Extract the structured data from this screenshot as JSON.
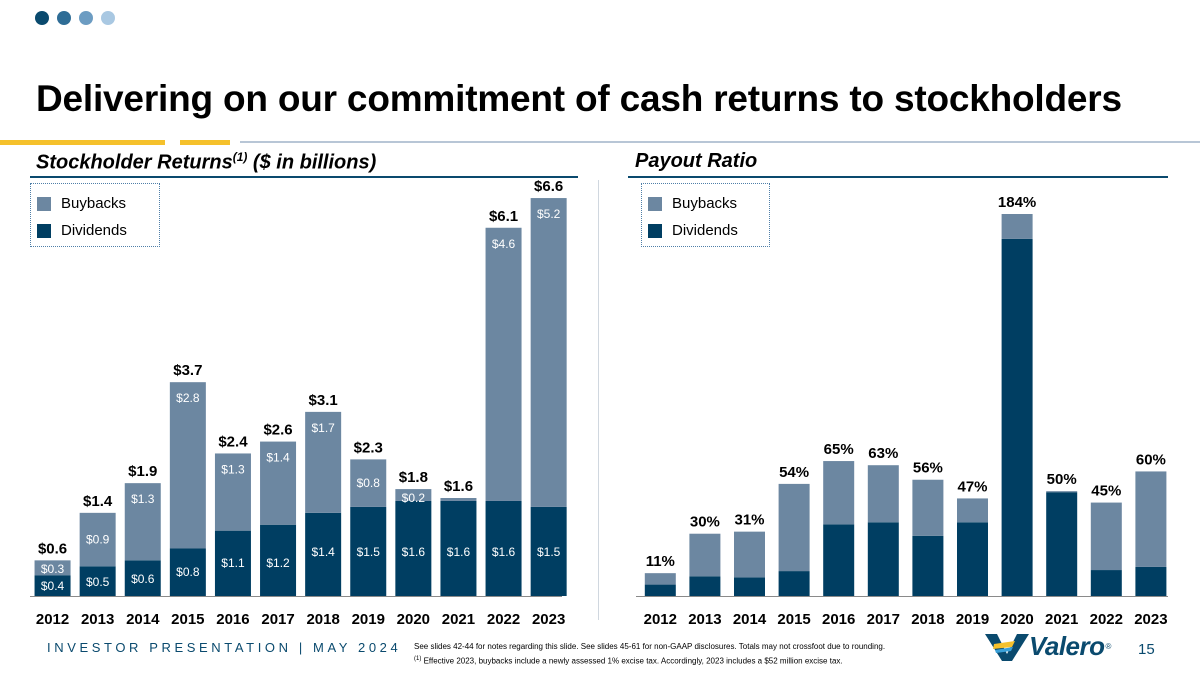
{
  "slide": {
    "title": "Delivering on our commitment of cash returns to stockholders",
    "footer_left": "INVESTOR PRESENTATION | MAY 2024",
    "footnote_1": "See slides 42-44 for notes regarding this slide. See slides 45-61 for non-GAAP disclosures. Totals may not crossfoot due to rounding.",
    "footnote_2_marker": "(1)",
    "footnote_2": " Effective 2023, buybacks include a newly assessed 1% excise tax. Accordingly, 2023 includes a $52 million excise tax.",
    "logo_text": "Valero",
    "logo_reg": "®",
    "page_number": "15"
  },
  "colors": {
    "buybacks": "#6c87a1",
    "dividends": "#003e62",
    "dots": [
      "#0a4a6e",
      "#2f6d96",
      "#6c9cc2",
      "#a9c8e2"
    ]
  },
  "left_section": {
    "heading": "Stockholder Returns",
    "heading_sup": "(1)",
    "heading_suffix": " ($ in billions)",
    "legend": {
      "buybacks": "Buybacks",
      "dividends": "Dividends"
    }
  },
  "right_section": {
    "heading": "Payout Ratio",
    "legend": {
      "buybacks": "Buybacks",
      "dividends": "Dividends"
    }
  },
  "chart_data": [
    {
      "type": "bar",
      "stacked": true,
      "title": "Stockholder Returns ($ in billions)",
      "categories": [
        "2012",
        "2013",
        "2014",
        "2015",
        "2016",
        "2017",
        "2018",
        "2019",
        "2020",
        "2021",
        "2022",
        "2023"
      ],
      "series": [
        {
          "name": "Dividends",
          "values": [
            0.35,
            0.5,
            0.6,
            0.8,
            1.1,
            1.2,
            1.4,
            1.5,
            1.6,
            1.6,
            1.6,
            1.5
          ],
          "labels": [
            "$0.4",
            "$0.5",
            "$0.6",
            "$0.8",
            "$1.1",
            "$1.2",
            "$1.4",
            "$1.5",
            "$1.6",
            "$1.6",
            "$1.6",
            "$1.5"
          ]
        },
        {
          "name": "Buybacks",
          "values": [
            0.25,
            0.9,
            1.3,
            2.8,
            1.3,
            1.4,
            1.7,
            0.8,
            0.2,
            0.05,
            4.6,
            5.2
          ],
          "labels": [
            "$0.3",
            "$0.9",
            "$1.3",
            "$2.8",
            "$1.3",
            "$1.4",
            "$1.7",
            "$0.8",
            "$0.2",
            "",
            "$4.6",
            "$5.2"
          ]
        }
      ],
      "totals": [
        "$0.6",
        "$1.4",
        "$1.9",
        "$3.7",
        "$2.4",
        "$2.6",
        "$3.1",
        "$2.3",
        "$1.8",
        "$1.6",
        "$6.1",
        "$6.6"
      ],
      "ylim": [
        0,
        6.6
      ]
    },
    {
      "type": "bar",
      "stacked": true,
      "title": "Payout Ratio",
      "categories": [
        "2012",
        "2013",
        "2014",
        "2015",
        "2016",
        "2017",
        "2018",
        "2019",
        "2020",
        "2021",
        "2022",
        "2023"
      ],
      "series": [
        {
          "name": "Dividends",
          "values": [
            5.5,
            9.5,
            9,
            12,
            34.5,
            35.5,
            29,
            35.5,
            172,
            50,
            12.5,
            14
          ]
        },
        {
          "name": "Buybacks",
          "values": [
            5.5,
            20.5,
            22,
            42,
            30.5,
            27.5,
            27,
            11.5,
            12,
            0.5,
            32.5,
            46
          ]
        }
      ],
      "totals": [
        "11%",
        "30%",
        "31%",
        "54%",
        "65%",
        "63%",
        "56%",
        "47%",
        "184%",
        "50%",
        "45%",
        "60%"
      ],
      "ylim": [
        0,
        184
      ]
    }
  ]
}
